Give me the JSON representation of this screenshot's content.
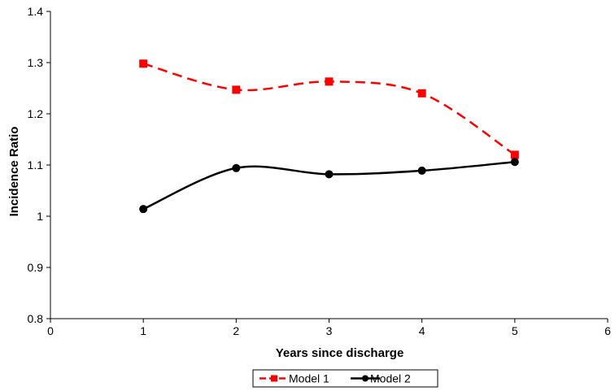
{
  "chart_data": {
    "type": "line",
    "xlabel": "Years since discharge",
    "ylabel": "Incidence Ratio",
    "xlim": [
      0,
      6
    ],
    "ylim": [
      0.8,
      1.4
    ],
    "x_ticks": [
      "0",
      "1",
      "2",
      "3",
      "4",
      "5",
      "6"
    ],
    "y_ticks": [
      "0.8",
      "0.9",
      "1",
      "1.1",
      "1.2",
      "1.3",
      "1.4"
    ],
    "grid": false,
    "smooth": true,
    "legend_position": "bottom",
    "series": [
      {
        "name": "Model 1",
        "color": "#ff0000",
        "line_style": "dashed",
        "marker": "square",
        "x": [
          1,
          2,
          3,
          4,
          5
        ],
        "y": [
          1.298,
          1.247,
          1.263,
          1.24,
          1.12
        ]
      },
      {
        "name": "Model 2",
        "color": "#000000",
        "line_style": "solid",
        "marker": "circle",
        "x": [
          1,
          2,
          3,
          4,
          5
        ],
        "y": [
          1.014,
          1.094,
          1.082,
          1.089,
          1.106
        ]
      }
    ]
  }
}
